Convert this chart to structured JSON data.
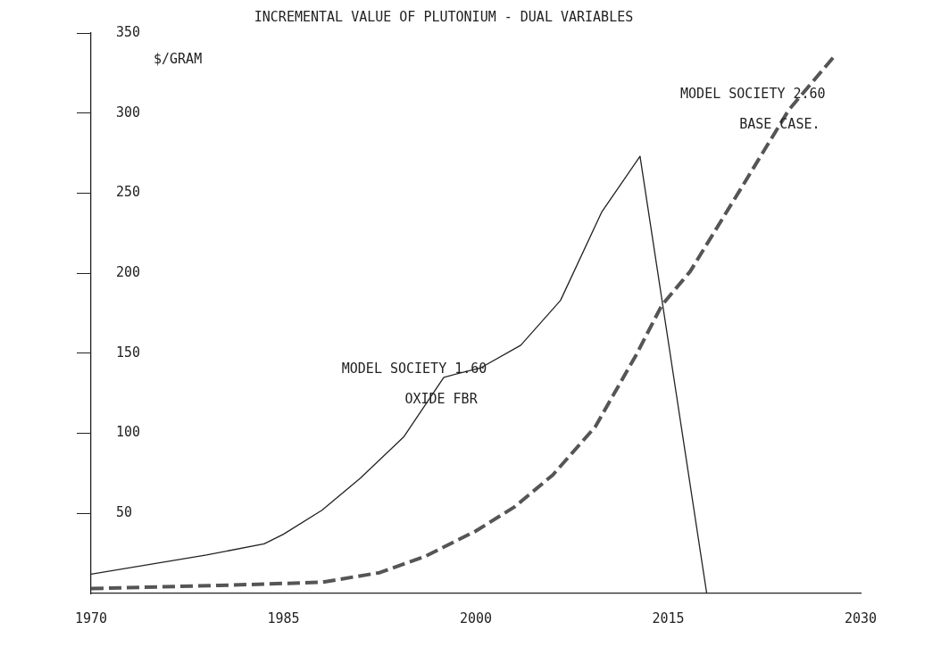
{
  "chart_data": {
    "type": "line",
    "title": "INCREMENTAL VALUE OF PLUTONIUM - DUAL VARIABLES",
    "ylabel": "$/GRAM",
    "xlim": [
      1970,
      2030
    ],
    "xticks": [
      1970,
      1985,
      2000,
      2015,
      2030
    ],
    "ylim": [
      0,
      350
    ],
    "yticks": [
      50,
      100,
      150,
      200,
      250,
      300,
      350
    ],
    "grid": false,
    "legend": false,
    "marker": "none",
    "series": [
      {
        "name": "MODEL SOCIETY 1.60\nOXIDE FBR",
        "color": "#222222",
        "line_style": "solid",
        "x": [
          1970,
          1979,
          1983.5,
          1985,
          1988,
          1991,
          1994.4,
          1997.5,
          2000.4,
          2003.5,
          2006.6,
          2009.8,
          2012.8,
          2018
        ],
        "values": [
          12,
          24,
          31,
          37,
          52,
          72,
          98,
          135,
          141,
          155,
          183,
          238,
          273,
          0
        ]
      },
      {
        "name": "MODEL SOCIETY 2.60\nBASE CASE.",
        "color": "#555555",
        "line_style": "dashed",
        "x": [
          1970,
          1980,
          1988,
          1992.5,
          1996,
          2000,
          2003,
          2006,
          2009.3,
          2012.5,
          2014.5,
          2016.7,
          2020.6,
          2024.4,
          2028
        ],
        "values": [
          3,
          5,
          7,
          13,
          23,
          39,
          54,
          74,
          104,
          149,
          180,
          201,
          252,
          302,
          336
        ]
      }
    ]
  }
}
